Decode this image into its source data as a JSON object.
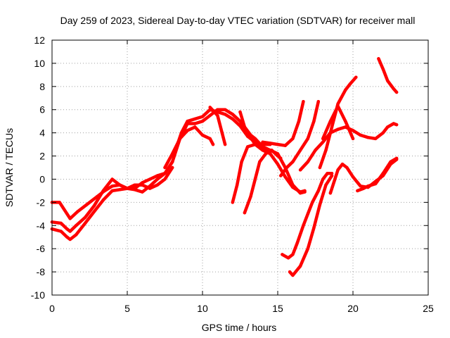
{
  "chart_data": {
    "type": "line",
    "title": "Day 259 of 2023, Sidereal Day-to-day VTEC variation (SDTVAR) for receiver mall",
    "xlabel": "GPS time / hours",
    "ylabel": "SDTVAR / TECUs",
    "xlim": [
      0,
      25
    ],
    "ylim": [
      -10,
      12
    ],
    "xticks": [
      "0",
      "5",
      "10",
      "15",
      "20",
      "25"
    ],
    "yticks": [
      "-10",
      "-8",
      "-6",
      "-4",
      "-2",
      "0",
      "2",
      "4",
      "6",
      "8",
      "10",
      "12"
    ],
    "grid": true,
    "legend": "none",
    "series_color": "#ff0000",
    "series": [
      {
        "points": [
          [
            0,
            -2
          ],
          [
            0.5,
            -2
          ],
          [
            1,
            -3
          ],
          [
            1.2,
            -3.4
          ],
          [
            1.7,
            -2.8
          ],
          [
            2.3,
            -2.2
          ],
          [
            3,
            -1.5
          ],
          [
            3.5,
            -1
          ],
          [
            4,
            -0.6
          ],
          [
            4.5,
            -0.5
          ],
          [
            5,
            -0.8
          ],
          [
            5.5,
            -0.8
          ],
          [
            6,
            -0.3
          ],
          [
            6.5,
            0
          ],
          [
            7,
            0.3
          ],
          [
            7.5,
            0.5
          ],
          [
            8,
            1.5
          ]
        ]
      },
      {
        "points": [
          [
            0,
            -3.7
          ],
          [
            0.6,
            -3.8
          ],
          [
            1,
            -4.3
          ],
          [
            1.2,
            -4.5
          ],
          [
            1.6,
            -4
          ],
          [
            2.2,
            -3.3
          ],
          [
            2.8,
            -2.3
          ],
          [
            3.4,
            -1
          ],
          [
            4,
            0
          ],
          [
            4.5,
            -0.5
          ],
          [
            5,
            -0.8
          ],
          [
            5.5,
            -0.9
          ],
          [
            6,
            -1.1
          ],
          [
            6.5,
            -0.6
          ],
          [
            7,
            0
          ],
          [
            7.5,
            0.5
          ],
          [
            8,
            1.5
          ],
          [
            8.5,
            3.5
          ],
          [
            9,
            4.8
          ],
          [
            9.5,
            4.8
          ],
          [
            10,
            5
          ],
          [
            10.5,
            5.5
          ],
          [
            11,
            6
          ],
          [
            11.5,
            6
          ],
          [
            12,
            5.6
          ],
          [
            12.5,
            5
          ],
          [
            13,
            4
          ],
          [
            13.5,
            3
          ],
          [
            14,
            2.5
          ],
          [
            14.5,
            2.2
          ]
        ]
      },
      {
        "points": [
          [
            0,
            -4.3
          ],
          [
            0.6,
            -4.5
          ],
          [
            1,
            -5
          ],
          [
            1.2,
            -5.2
          ],
          [
            1.6,
            -4.8
          ],
          [
            2.2,
            -3.8
          ],
          [
            2.8,
            -2.8
          ],
          [
            3.4,
            -1.8
          ],
          [
            4,
            -1
          ],
          [
            4.5,
            -0.9
          ],
          [
            5,
            -0.8
          ],
          [
            5.5,
            -0.5
          ],
          [
            6,
            -0.5
          ],
          [
            6.5,
            -0.8
          ],
          [
            7,
            -0.5
          ],
          [
            7.5,
            0
          ],
          [
            8,
            1
          ]
        ]
      },
      {
        "points": [
          [
            7.5,
            1
          ],
          [
            8,
            2.2
          ],
          [
            8.5,
            3.5
          ],
          [
            9,
            4.2
          ],
          [
            9.5,
            4.5
          ],
          [
            10,
            3.8
          ],
          [
            10.5,
            3.5
          ],
          [
            10.7,
            3
          ]
        ]
      },
      {
        "points": [
          [
            8.2,
            2.5
          ],
          [
            8.6,
            4
          ],
          [
            9,
            5
          ],
          [
            9.5,
            5.2
          ],
          [
            10,
            5.4
          ],
          [
            10.5,
            6
          ],
          [
            11,
            5.8
          ],
          [
            11.5,
            5.6
          ],
          [
            12,
            5.2
          ],
          [
            12.5,
            4.6
          ],
          [
            13,
            3.7
          ],
          [
            13.5,
            3.2
          ],
          [
            14,
            3
          ],
          [
            14.5,
            3
          ]
        ]
      },
      {
        "points": [
          [
            10.5,
            6.2
          ],
          [
            11,
            5.5
          ],
          [
            11.3,
            4
          ],
          [
            11.5,
            3
          ]
        ]
      },
      {
        "points": [
          [
            12.5,
            5.8
          ],
          [
            12.8,
            4.5
          ],
          [
            13.2,
            3.8
          ],
          [
            13.5,
            3.5
          ],
          [
            14,
            2.8
          ],
          [
            14.5,
            2.2
          ],
          [
            15,
            1.3
          ],
          [
            15.5,
            0.2
          ],
          [
            16,
            -0.7
          ],
          [
            16.5,
            -1.1
          ],
          [
            16.8,
            -1
          ]
        ]
      },
      {
        "points": [
          [
            12,
            -2
          ],
          [
            12.3,
            -0.5
          ],
          [
            12.6,
            1.5
          ],
          [
            13,
            2.8
          ],
          [
            13.5,
            3
          ],
          [
            14,
            2.8
          ],
          [
            14.5,
            2.5
          ],
          [
            15,
            2.2
          ],
          [
            15.5,
            1
          ],
          [
            16,
            -0.5
          ],
          [
            16.5,
            -1.2
          ],
          [
            16.8,
            -1.1
          ]
        ]
      },
      {
        "points": [
          [
            12.8,
            -2.9
          ],
          [
            13.2,
            -1.5
          ],
          [
            13.5,
            0
          ],
          [
            13.8,
            1.5
          ],
          [
            14.2,
            2.2
          ],
          [
            14.6,
            2.5
          ],
          [
            15,
            2
          ],
          [
            15.2,
            1.8
          ]
        ]
      },
      {
        "points": [
          [
            14,
            3.2
          ],
          [
            14.5,
            3.1
          ],
          [
            15,
            3
          ],
          [
            15.5,
            2.9
          ],
          [
            16,
            3.5
          ],
          [
            16.4,
            5
          ],
          [
            16.7,
            6.7
          ]
        ]
      },
      {
        "points": [
          [
            15.2,
            0.3
          ],
          [
            15.6,
            1
          ],
          [
            16,
            1.5
          ],
          [
            16.5,
            2.5
          ],
          [
            17,
            3.5
          ],
          [
            17.4,
            5
          ],
          [
            17.7,
            6.7
          ]
        ]
      },
      {
        "points": [
          [
            16.5,
            0.8
          ],
          [
            17,
            1.5
          ],
          [
            17.5,
            2.5
          ],
          [
            18,
            3.2
          ],
          [
            18.5,
            4
          ],
          [
            19,
            4.3
          ],
          [
            19.5,
            4.5
          ],
          [
            20,
            4.2
          ],
          [
            20.5,
            3.8
          ],
          [
            21,
            3.6
          ],
          [
            21.5,
            3.5
          ],
          [
            22,
            4
          ],
          [
            22.3,
            4.5
          ],
          [
            22.7,
            4.8
          ],
          [
            22.9,
            4.7
          ]
        ]
      },
      {
        "points": [
          [
            17.8,
            1
          ],
          [
            18.2,
            2.5
          ],
          [
            18.6,
            4.5
          ],
          [
            19,
            6.5
          ],
          [
            19.5,
            7.7
          ],
          [
            19.8,
            8.2
          ],
          [
            20.2,
            8.8
          ]
        ]
      },
      {
        "points": [
          [
            18,
            3.5
          ],
          [
            18.5,
            5
          ],
          [
            19,
            6.3
          ],
          [
            19.5,
            5
          ],
          [
            20,
            3.5
          ]
        ]
      },
      {
        "points": [
          [
            21.7,
            10.4
          ],
          [
            22,
            9.5
          ],
          [
            22.3,
            8.5
          ],
          [
            22.7,
            7.8
          ],
          [
            22.9,
            7.5
          ]
        ]
      },
      {
        "points": [
          [
            15.3,
            -6.5
          ],
          [
            15.7,
            -6.8
          ],
          [
            16,
            -6.5
          ],
          [
            16.3,
            -5.5
          ],
          [
            16.7,
            -4
          ],
          [
            17,
            -3
          ],
          [
            17.3,
            -2
          ],
          [
            17.7,
            -1
          ],
          [
            18,
            0
          ],
          [
            18.3,
            0.5
          ],
          [
            18.6,
            0.5
          ]
        ]
      },
      {
        "points": [
          [
            15.8,
            -8
          ],
          [
            16,
            -8.3
          ],
          [
            16.5,
            -7.5
          ],
          [
            17,
            -6
          ],
          [
            17.4,
            -4.2
          ],
          [
            17.8,
            -2.2
          ],
          [
            18.2,
            -0.5
          ],
          [
            18.6,
            0.3
          ]
        ]
      },
      {
        "points": [
          [
            18.5,
            -1.2
          ],
          [
            18.8,
            0
          ],
          [
            19,
            0.8
          ],
          [
            19.3,
            1.3
          ],
          [
            19.6,
            1
          ],
          [
            20,
            0.2
          ],
          [
            20.5,
            -0.6
          ],
          [
            21,
            -0.7
          ],
          [
            21.5,
            -0.2
          ],
          [
            22,
            0.3
          ],
          [
            22.5,
            1.3
          ],
          [
            22.9,
            1.7
          ]
        ]
      },
      {
        "points": [
          [
            20.3,
            -1
          ],
          [
            20.7,
            -0.8
          ],
          [
            21,
            -0.6
          ],
          [
            21.5,
            -0.4
          ],
          [
            22,
            0.5
          ],
          [
            22.5,
            1.5
          ],
          [
            22.9,
            1.8
          ]
        ]
      }
    ]
  }
}
